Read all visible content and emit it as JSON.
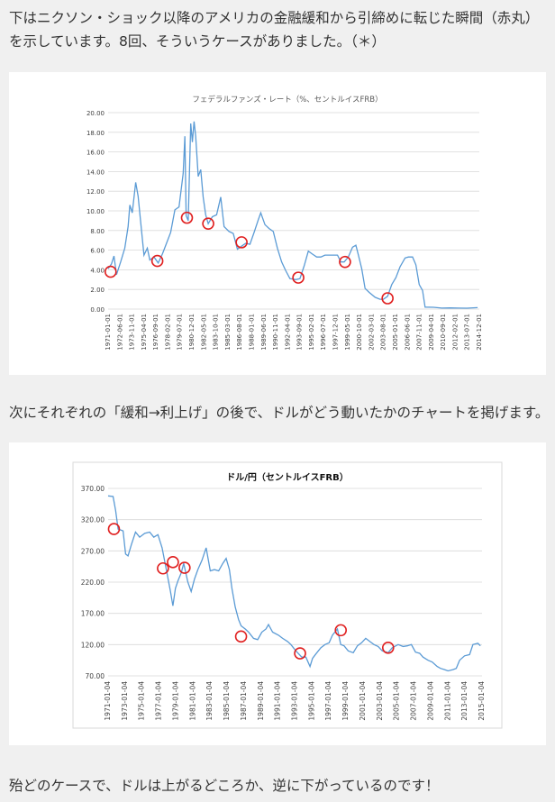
{
  "texts": {
    "p1": "下はニクソン・ショック以降のアメリカの金融緩和から引締めに転じた瞬間（赤丸）を示しています。8回、そういうケースがありました。（＊）",
    "p2": "次にそれぞれの「緩和→利上げ」の後で、ドルがどう動いたかのチャートを掲げます。",
    "p3": "殆どのケースで、ドルは上がるどころか、逆に下がっているのです！"
  },
  "colors": {
    "line": "#5b9bd5",
    "marker": "#e02020",
    "grid": "#d9d9d9"
  },
  "chart_data": [
    {
      "type": "line",
      "title": "フェデラルファンズ・レート（%、セントルイスFRB）",
      "ylim": [
        0,
        20
      ],
      "yticks": [
        "20.00",
        "18.00",
        "16.00",
        "14.00",
        "12.00",
        "10.00",
        "8.00",
        "6.00",
        "4.00",
        "2.00",
        "0.00"
      ],
      "xticks": [
        "1971-01-01",
        "1972-06-01",
        "1973-11-01",
        "1975-04-01",
        "1976-09-01",
        "1978-02-01",
        "1979-07-01",
        "1980-12-01",
        "1982-05-01",
        "1983-10-01",
        "1985-03-01",
        "1986-08-01",
        "1988-01-01",
        "1989-06-01",
        "1990-11-01",
        "1992-04-01",
        "1993-09-01",
        "1995-02-01",
        "1996-07-01",
        "1997-12-01",
        "1999-05-01",
        "2000-10-01",
        "2002-03-01",
        "2003-08-01",
        "2005-01-01",
        "2006-06-01",
        "2007-11-01",
        "2009-04-01",
        "2010-09-01",
        "2012-02-01",
        "2013-07-01",
        "2014-12-01"
      ],
      "x": [
        1971.0,
        1971.4,
        1971.7,
        1972.0,
        1972.5,
        1973.0,
        1973.4,
        1973.6,
        1973.9,
        1974.3,
        1974.6,
        1974.9,
        1975.3,
        1975.7,
        1976.0,
        1976.5,
        1977.0,
        1977.5,
        1978.0,
        1978.5,
        1979.0,
        1979.5,
        1980.0,
        1980.2,
        1980.35,
        1980.6,
        1980.9,
        1981.1,
        1981.3,
        1981.5,
        1981.8,
        1982.1,
        1982.4,
        1982.7,
        1983.0,
        1983.5,
        1984.0,
        1984.5,
        1984.9,
        1985.5,
        1986.0,
        1986.5,
        1987.0,
        1987.5,
        1988.0,
        1988.5,
        1989.0,
        1989.3,
        1989.8,
        1990.3,
        1990.8,
        1991.3,
        1991.8,
        1992.3,
        1992.8,
        1993.5,
        1994.0,
        1994.5,
        1995.0,
        1995.5,
        1996.0,
        1996.5,
        1997.0,
        1997.5,
        1998.0,
        1998.5,
        1998.9,
        1999.3,
        1999.8,
        2000.3,
        2000.7,
        2001.0,
        2001.4,
        2001.8,
        2002.3,
        2003.0,
        2003.6,
        2004.0,
        2004.5,
        2005.0,
        2005.5,
        2006.0,
        2006.6,
        2007.0,
        2007.5,
        2007.9,
        2008.3,
        2008.7,
        2009.0,
        2010.0,
        2011.0,
        2012.0,
        2013.0,
        2014.0,
        2015.3
      ],
      "y": [
        4.1,
        4.6,
        5.4,
        3.5,
        4.8,
        6.2,
        8.4,
        10.6,
        9.8,
        12.9,
        11.5,
        8.9,
        5.5,
        6.2,
        5.0,
        5.3,
        4.7,
        5.6,
        6.7,
        7.8,
        10.1,
        10.4,
        13.8,
        17.6,
        9.5,
        9.0,
        18.9,
        17.0,
        19.1,
        17.6,
        13.5,
        14.2,
        11.4,
        9.6,
        8.7,
        9.4,
        9.6,
        11.4,
        8.4,
        7.9,
        7.7,
        6.1,
        6.4,
        6.7,
        6.6,
        7.8,
        9.1,
        9.8,
        8.6,
        8.2,
        7.9,
        6.2,
        4.8,
        3.9,
        3.1,
        3.0,
        3.1,
        4.4,
        5.9,
        5.6,
        5.3,
        5.3,
        5.5,
        5.5,
        5.5,
        5.5,
        4.8,
        4.8,
        5.3,
        6.3,
        6.5,
        5.5,
        4.1,
        2.1,
        1.7,
        1.2,
        1.0,
        1.0,
        1.3,
        2.5,
        3.2,
        4.3,
        5.2,
        5.3,
        5.3,
        4.5,
        2.5,
        1.9,
        0.2,
        0.18,
        0.1,
        0.12,
        0.1,
        0.09,
        0.15
      ],
      "markers": [
        {
          "x": 1971.3,
          "y": 3.8
        },
        {
          "x": 1976.9,
          "y": 4.9
        },
        {
          "x": 1980.45,
          "y": 9.3
        },
        {
          "x": 1983.0,
          "y": 8.7
        },
        {
          "x": 1987.0,
          "y": 6.8
        },
        {
          "x": 1993.8,
          "y": 3.2
        },
        {
          "x": 1999.4,
          "y": 4.8
        },
        {
          "x": 2004.5,
          "y": 1.1
        }
      ]
    },
    {
      "type": "line",
      "title": "ドル/円（セントルイスFRB）",
      "ylim": [
        70,
        370
      ],
      "yticks": [
        "370.00",
        "320.00",
        "270.00",
        "220.00",
        "170.00",
        "120.00",
        "70.00"
      ],
      "xticks": [
        "1971-01-04",
        "1973-01-04",
        "1975-01-04",
        "1977-01-04",
        "1979-01-04",
        "1981-01-04",
        "1983-01-04",
        "1985-01-04",
        "1987-01-04",
        "1989-01-04",
        "1991-01-04",
        "1993-01-04",
        "1995-01-04",
        "1997-01-04",
        "1999-01-04",
        "2001-01-04",
        "2003-01-04",
        "2005-01-04",
        "2007-01-04",
        "2009-01-04",
        "2011-01-04",
        "2013-01-04",
        "2015-01-04"
      ],
      "x": [
        1971.0,
        1971.6,
        1971.9,
        1972.2,
        1972.8,
        1973.1,
        1973.4,
        1973.8,
        1974.3,
        1974.8,
        1975.4,
        1976.0,
        1976.5,
        1977.0,
        1977.5,
        1978.0,
        1978.5,
        1978.8,
        1979.1,
        1979.4,
        1979.8,
        1980.1,
        1980.6,
        1981.0,
        1981.4,
        1981.8,
        1982.3,
        1982.8,
        1983.3,
        1983.8,
        1984.3,
        1984.8,
        1985.2,
        1985.6,
        1985.9,
        1986.3,
        1986.7,
        1987.0,
        1987.5,
        1987.9,
        1988.5,
        1989.0,
        1989.5,
        1990.0,
        1990.3,
        1990.8,
        1991.5,
        1992.0,
        1992.6,
        1993.0,
        1993.6,
        1994.3,
        1994.8,
        1995.3,
        1995.6,
        1996.0,
        1996.6,
        1997.1,
        1997.6,
        1998.0,
        1998.6,
        1999.0,
        1999.4,
        1999.9,
        2000.5,
        2001.0,
        2001.5,
        2002.0,
        2002.5,
        2003.0,
        2003.5,
        2004.0,
        2004.7,
        2005.2,
        2005.9,
        2006.5,
        2007.0,
        2007.5,
        2008.0,
        2008.5,
        2008.9,
        2009.5,
        2010.0,
        2010.6,
        2011.0,
        2011.5,
        2011.9,
        2012.5,
        2012.9,
        2013.3,
        2013.9,
        2014.5,
        2014.9,
        2015.5,
        2015.8
      ],
      "y": [
        358,
        357,
        335,
        305,
        302,
        265,
        262,
        280,
        300,
        292,
        298,
        300,
        292,
        296,
        275,
        240,
        205,
        182,
        210,
        222,
        235,
        250,
        220,
        205,
        225,
        240,
        255,
        275,
        238,
        240,
        238,
        250,
        258,
        240,
        210,
        180,
        160,
        150,
        145,
        140,
        130,
        128,
        140,
        145,
        152,
        140,
        135,
        130,
        125,
        120,
        110,
        100,
        100,
        85,
        98,
        105,
        115,
        120,
        123,
        135,
        145,
        120,
        118,
        110,
        107,
        118,
        123,
        130,
        125,
        120,
        117,
        110,
        107,
        115,
        120,
        117,
        118,
        120,
        108,
        106,
        100,
        95,
        92,
        85,
        82,
        80,
        78,
        80,
        82,
        95,
        102,
        104,
        120,
        122,
        118
      ],
      "markers": [
        {
          "x": 1971.7,
          "y": 305
        },
        {
          "x": 1977.6,
          "y": 242
        },
        {
          "x": 1978.8,
          "y": 252
        },
        {
          "x": 1980.2,
          "y": 243
        },
        {
          "x": 1987.0,
          "y": 133
        },
        {
          "x": 1994.1,
          "y": 106
        },
        {
          "x": 1999.0,
          "y": 143
        },
        {
          "x": 2004.7,
          "y": 115
        }
      ]
    }
  ]
}
